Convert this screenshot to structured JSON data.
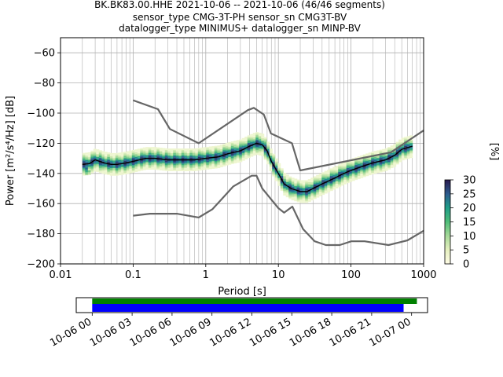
{
  "title_lines": [
    "BK.BK83.00.HHE   2021-10-06 -- 2021-10-06  (46/46 segments)",
    "sensor_type CMG-3T-PH sensor_sn CMG3T-BV",
    "datalogger_type MINIMUS+ datalogger_sn MINP-BV"
  ],
  "chart_data": {
    "type": "heatmap",
    "xlabel": "Period [s]",
    "ylabel": "Power [m²/s⁴/Hz] [dB]",
    "x_scale": "log",
    "xlim": [
      0.01,
      1000
    ],
    "ylim": [
      -200,
      -50
    ],
    "x_ticks": [
      0.01,
      0.1,
      1,
      10,
      100,
      1000
    ],
    "x_tick_labels": [
      "0.01",
      "0.1",
      "1",
      "10",
      "100",
      "1000"
    ],
    "y_ticks": [
      -200,
      -180,
      -160,
      -140,
      -120,
      -100,
      -80,
      -60
    ],
    "y_tick_labels": [
      "−200",
      "−180",
      "−160",
      "−140",
      "−120",
      "−100",
      "−80",
      "−60"
    ],
    "grid": true,
    "colorbar": {
      "label": "[%]",
      "ticks": [
        0,
        5,
        10,
        15,
        20,
        25,
        30
      ],
      "tick_labels": [
        "0",
        "5",
        "10",
        "15",
        "20",
        "25",
        "30"
      ],
      "range": [
        0,
        30
      ]
    },
    "series": [
      {
        "role": "high-noise-model",
        "color": "#666666",
        "x": [
          0.1,
          0.22,
          0.32,
          0.8,
          3.8,
          4.6,
          6.3,
          7.9,
          15.4,
          20,
          354.8,
          1000
        ],
        "y": [
          -91.5,
          -97.4,
          -110.5,
          -120,
          -98,
          -96.5,
          -101,
          -113.5,
          -120,
          -138,
          -126,
          -111.5
        ]
      },
      {
        "role": "low-noise-model",
        "color": "#666666",
        "x": [
          0.1,
          0.17,
          0.4,
          0.8,
          1.24,
          2.4,
          4.3,
          5,
          6,
          10,
          12,
          15.6,
          21.9,
          31.6,
          45,
          70,
          101,
          154,
          328,
          600,
          1000
        ],
        "y": [
          -168,
          -166.7,
          -166.7,
          -169.2,
          -163.7,
          -148.6,
          -141.5,
          -141.5,
          -150,
          -163,
          -166,
          -162,
          -177,
          -185,
          -187.5,
          -187.5,
          -185,
          -185,
          -187.5,
          -184.4,
          -178
        ]
      },
      {
        "role": "mean",
        "color": "#000000",
        "x": [
          0.02,
          0.025,
          0.03,
          0.04,
          0.05,
          0.06,
          0.08,
          0.1,
          0.15,
          0.2,
          0.3,
          0.5,
          0.7,
          1,
          1.5,
          2,
          3,
          4,
          5,
          6,
          7,
          8,
          10,
          12,
          15,
          20,
          25,
          30,
          40,
          60,
          80,
          100,
          150,
          200,
          300,
          400,
          500,
          700
        ],
        "y": [
          -134,
          -133.5,
          -131,
          -133,
          -134,
          -134,
          -133,
          -132,
          -130,
          -130,
          -131,
          -131,
          -131,
          -130,
          -129,
          -127,
          -125,
          -122,
          -120,
          -121,
          -125,
          -132,
          -140,
          -147,
          -150,
          -152,
          -152,
          -150,
          -147,
          -143,
          -140,
          -138,
          -135,
          -133,
          -131,
          -128,
          -124,
          -122
        ]
      }
    ]
  },
  "timeline": {
    "tick_labels": [
      "10-06 00",
      "10-06 03",
      "10-06 06",
      "10-06 09",
      "10-06 12",
      "10-06 15",
      "10-06 18",
      "10-06 21",
      "10-07 00"
    ],
    "tick_hours": [
      0,
      3,
      6,
      9,
      12,
      15,
      18,
      21,
      24
    ],
    "range_hours": [
      -1.2,
      25.2
    ],
    "data_segment_hours": [
      0,
      24.4
    ],
    "processed_segment_hours": [
      0,
      23.4
    ],
    "colors": {
      "data": "#008000",
      "processed": "#0000ff"
    }
  }
}
